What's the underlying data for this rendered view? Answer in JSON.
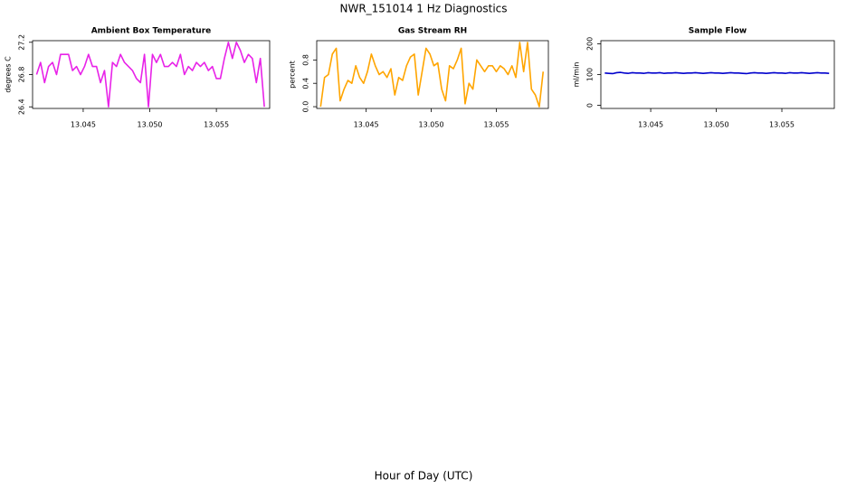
{
  "title": "NWR_151014  1 Hz Diagnostics",
  "xlabel": "Hour of Day (UTC)",
  "chart_data": [
    {
      "type": "line",
      "title": "Ambient Box Temperature",
      "ylabel": "degrees C",
      "color": "#e823e8",
      "xlim": [
        13.0412,
        13.059
      ],
      "xticks": [
        13.045,
        {
          "value": 13.05,
          "label": "13.050"
        },
        13.055
      ],
      "ylim": [
        26.38,
        27.22
      ],
      "yticks": [
        26.4,
        26.8,
        27.2
      ],
      "x": [
        13.0415,
        13.0418,
        13.0421,
        13.0424,
        13.0427,
        13.043,
        13.0433,
        13.0436,
        13.0439,
        13.0442,
        13.0445,
        13.0448,
        13.0451,
        13.0454,
        13.0457,
        13.046,
        13.0463,
        13.0466,
        13.0469,
        13.0472,
        13.0475,
        13.0478,
        13.0481,
        13.0484,
        13.0487,
        13.049,
        13.0493,
        13.0496,
        13.0499,
        13.0502,
        13.0505,
        13.0508,
        13.0511,
        13.0514,
        13.0517,
        13.052,
        13.0523,
        13.0526,
        13.0529,
        13.0532,
        13.0535,
        13.0538,
        13.0541,
        13.0544,
        13.0547,
        13.055,
        13.0553,
        13.0556,
        13.0559,
        13.0562,
        13.0565,
        13.0568,
        13.0571,
        13.0574,
        13.0577,
        13.058,
        13.0583,
        13.0586
      ],
      "values": [
        26.8,
        26.95,
        26.7,
        26.9,
        26.95,
        26.8,
        27.05,
        27.05,
        27.05,
        26.85,
        26.9,
        26.8,
        26.9,
        27.05,
        26.9,
        26.9,
        26.7,
        26.85,
        26.4,
        26.95,
        26.9,
        27.05,
        26.95,
        26.9,
        26.85,
        26.75,
        26.7,
        27.05,
        26.4,
        27.05,
        26.95,
        27.05,
        26.9,
        26.9,
        26.95,
        26.9,
        27.05,
        26.8,
        26.9,
        26.85,
        26.95,
        26.9,
        26.95,
        26.85,
        26.9,
        26.75,
        26.75,
        27.0,
        27.2,
        27.0,
        27.2,
        27.1,
        26.95,
        27.05,
        27.0,
        26.7,
        27.0,
        26.4
      ]
    },
    {
      "type": "line",
      "title": "Gas Stream RH",
      "ylabel": "percent",
      "color": "#ffa500",
      "xlim": [
        13.0412,
        13.059
      ],
      "xticks": [
        13.045,
        {
          "value": 13.05,
          "label": "13.050"
        },
        13.055
      ],
      "ylim": [
        -0.03,
        1.13
      ],
      "yticks": [
        {
          "value": 0,
          "label": "0.0"
        },
        0.4,
        0.8
      ],
      "x": [
        13.0415,
        13.0418,
        13.0421,
        13.0424,
        13.0427,
        13.043,
        13.0433,
        13.0436,
        13.0439,
        13.0442,
        13.0445,
        13.0448,
        13.0451,
        13.0454,
        13.0457,
        13.046,
        13.0463,
        13.0466,
        13.0469,
        13.0472,
        13.0475,
        13.0478,
        13.0481,
        13.0484,
        13.0487,
        13.049,
        13.0493,
        13.0496,
        13.0499,
        13.0502,
        13.0505,
        13.0508,
        13.0511,
        13.0514,
        13.0517,
        13.052,
        13.0523,
        13.0526,
        13.0529,
        13.0532,
        13.0535,
        13.0538,
        13.0541,
        13.0544,
        13.0547,
        13.055,
        13.0553,
        13.0556,
        13.0559,
        13.0562,
        13.0565,
        13.0568,
        13.0571,
        13.0574,
        13.0577,
        13.058,
        13.0583,
        13.0586
      ],
      "values": [
        0.0,
        0.5,
        0.55,
        0.9,
        1.0,
        0.1,
        0.3,
        0.45,
        0.4,
        0.7,
        0.5,
        0.4,
        0.6,
        0.9,
        0.7,
        0.55,
        0.6,
        0.5,
        0.65,
        0.2,
        0.5,
        0.45,
        0.7,
        0.85,
        0.9,
        0.2,
        0.6,
        1.0,
        0.9,
        0.7,
        0.75,
        0.3,
        0.1,
        0.7,
        0.65,
        0.8,
        1.0,
        0.05,
        0.4,
        0.3,
        0.8,
        0.7,
        0.6,
        0.7,
        0.7,
        0.6,
        0.7,
        0.65,
        0.55,
        0.7,
        0.5,
        1.1,
        0.6,
        1.1,
        0.3,
        0.2,
        0.0,
        0.6
      ]
    },
    {
      "type": "line",
      "title": "Sample Flow",
      "ylabel": "ml/min",
      "color": "#0000cc",
      "xlim": [
        13.0412,
        13.059
      ],
      "xticks": [
        13.045,
        {
          "value": 13.05,
          "label": "13.050"
        },
        13.055
      ],
      "ylim": [
        -10,
        210
      ],
      "yticks": [
        0,
        100,
        200
      ],
      "x": [
        13.0415,
        13.0418,
        13.0421,
        13.0424,
        13.0427,
        13.043,
        13.0433,
        13.0436,
        13.0439,
        13.0442,
        13.0445,
        13.0448,
        13.0451,
        13.0454,
        13.0457,
        13.046,
        13.0463,
        13.0466,
        13.0469,
        13.0472,
        13.0475,
        13.0478,
        13.0481,
        13.0484,
        13.0487,
        13.049,
        13.0493,
        13.0496,
        13.0499,
        13.0502,
        13.0505,
        13.0508,
        13.0511,
        13.0514,
        13.0517,
        13.052,
        13.0523,
        13.0526,
        13.0529,
        13.0532,
        13.0535,
        13.0538,
        13.0541,
        13.0544,
        13.0547,
        13.055,
        13.0553,
        13.0556,
        13.0559,
        13.0562,
        13.0565,
        13.0568,
        13.0571,
        13.0574,
        13.0577,
        13.058,
        13.0583,
        13.0586
      ],
      "values": [
        105,
        104,
        103,
        106,
        107,
        105,
        104,
        106,
        105,
        105,
        104,
        106,
        105,
        105,
        106,
        104,
        105,
        105,
        106,
        105,
        104,
        105,
        105,
        106,
        105,
        104,
        105,
        106,
        105,
        105,
        104,
        105,
        106,
        105,
        105,
        104,
        103,
        105,
        106,
        105,
        105,
        104,
        105,
        106,
        105,
        105,
        104,
        106,
        105,
        105,
        106,
        105,
        104,
        105,
        106,
        105,
        105,
        104
      ]
    }
  ]
}
